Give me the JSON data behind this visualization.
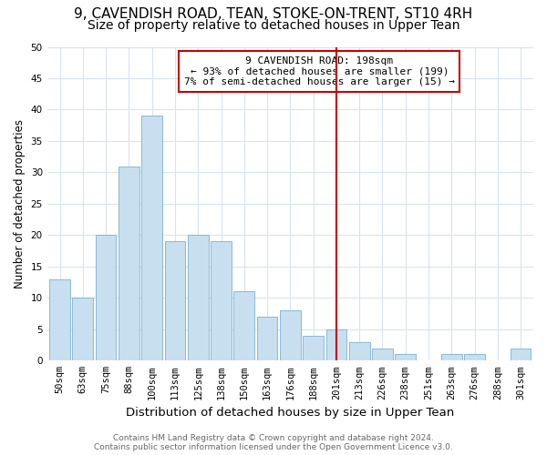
{
  "title1": "9, CAVENDISH ROAD, TEAN, STOKE-ON-TRENT, ST10 4RH",
  "title2": "Size of property relative to detached houses in Upper Tean",
  "xlabel": "Distribution of detached houses by size in Upper Tean",
  "ylabel": "Number of detached properties",
  "bar_labels": [
    "50sqm",
    "63sqm",
    "75sqm",
    "88sqm",
    "100sqm",
    "113sqm",
    "125sqm",
    "138sqm",
    "150sqm",
    "163sqm",
    "176sqm",
    "188sqm",
    "201sqm",
    "213sqm",
    "226sqm",
    "238sqm",
    "251sqm",
    "263sqm",
    "276sqm",
    "288sqm",
    "301sqm"
  ],
  "bar_values": [
    13,
    10,
    20,
    31,
    39,
    19,
    20,
    19,
    11,
    7,
    8,
    4,
    5,
    3,
    2,
    1,
    0,
    1,
    1,
    0,
    2
  ],
  "bar_color": "#c8dff0",
  "bar_edge_color": "#7ab0d4",
  "grid_color": "#d8e4f0",
  "vline_x_index": 12,
  "vline_color": "#cc0000",
  "annotation_title": "9 CAVENDISH ROAD: 198sqm",
  "annotation_line1": "← 93% of detached houses are smaller (199)",
  "annotation_line2": "7% of semi-detached houses are larger (15) →",
  "annotation_box_color": "#ffffff",
  "annotation_box_edge": "#cc0000",
  "footer1": "Contains HM Land Registry data © Crown copyright and database right 2024.",
  "footer2": "Contains public sector information licensed under the Open Government Licence v3.0.",
  "ylim": [
    0,
    50
  ],
  "title1_fontsize": 11,
  "title2_fontsize": 10,
  "xlabel_fontsize": 9.5,
  "ylabel_fontsize": 8.5,
  "tick_fontsize": 7.5,
  "ann_fontsize": 8,
  "footer_fontsize": 6.5
}
